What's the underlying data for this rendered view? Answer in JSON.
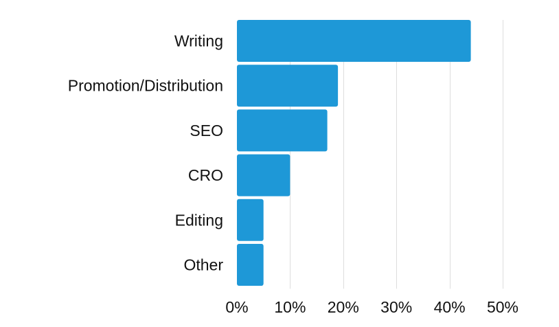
{
  "chart_data": {
    "type": "bar",
    "orientation": "horizontal",
    "categories": [
      "Writing",
      "Promotion/Distribution",
      "SEO",
      "CRO",
      "Editing",
      "Other"
    ],
    "values": [
      44,
      19,
      17,
      10,
      5,
      5
    ],
    "unit": "%",
    "xlim": [
      0,
      50
    ],
    "x_ticks": [
      0,
      10,
      20,
      30,
      40,
      50
    ],
    "x_tick_labels": [
      "0%",
      "10%",
      "20%",
      "30%",
      "40%",
      "50%"
    ],
    "title": "",
    "xlabel": "",
    "ylabel": "",
    "grid": "vertical",
    "legend": "none",
    "bar_color": "#1e98d7"
  }
}
